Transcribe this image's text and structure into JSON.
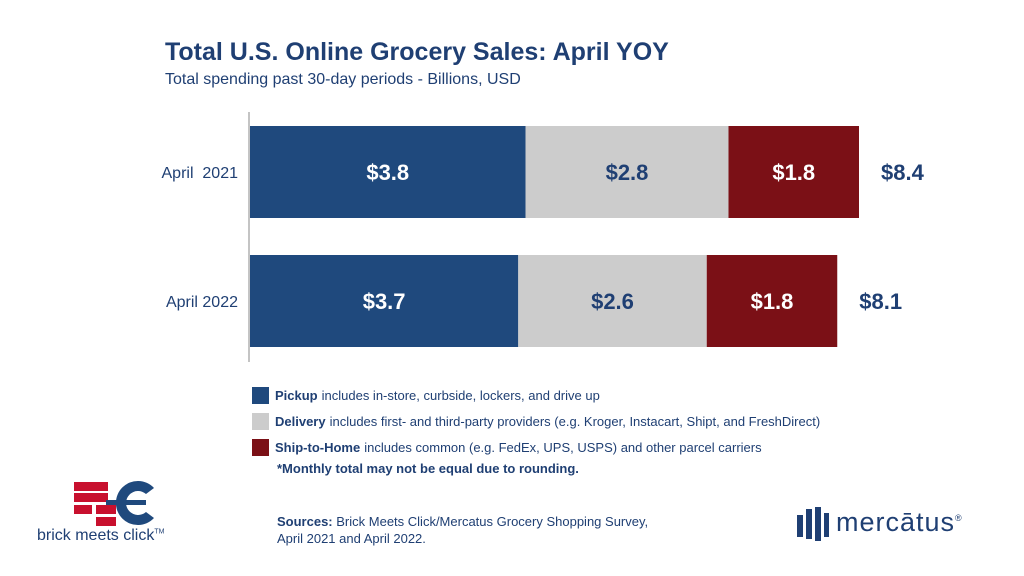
{
  "chart_data": {
    "type": "bar",
    "orientation": "horizontal",
    "stacked": true,
    "title": "Total U.S. Online Grocery Sales: April YOY",
    "subtitle": "Total spending past 30-day periods - Billions, USD",
    "categories": [
      "April  2021",
      "April 2022"
    ],
    "series": [
      {
        "name": "Pickup",
        "values": [
          3.8,
          3.7
        ],
        "labels": [
          "$3.8",
          "$3.7"
        ],
        "color": "#1f497d",
        "label_color": "#ffffff"
      },
      {
        "name": "Delivery",
        "values": [
          2.8,
          2.6
        ],
        "labels": [
          "$2.8",
          "$2.6"
        ],
        "color": "#cccccc",
        "label_color": "#1f3f73"
      },
      {
        "name": "Ship-to-Home",
        "values": [
          1.8,
          1.8
        ],
        "labels": [
          "$1.8",
          "$1.8"
        ],
        "color": "#7b1016",
        "label_color": "#ffffff"
      }
    ],
    "totals": [
      8.4,
      8.1
    ],
    "total_labels": [
      "$8.4",
      "$8.1"
    ],
    "legend_position": "bottom",
    "grid": false
  },
  "legend": [
    {
      "name": "Pickup",
      "desc": "includes in-store, curbside, lockers, and drive up",
      "color": "#1f497d"
    },
    {
      "name": "Delivery",
      "desc": "includes first- and third-party providers (e.g. Kroger, Instacart, Shipt, and FreshDirect)",
      "color": "#cccccc"
    },
    {
      "name": "Ship-to-Home",
      "desc": "includes common (e.g. FedEx, UPS, USPS) and other parcel carriers",
      "color": "#7b1016"
    }
  ],
  "footnote": "*Monthly total may not be equal due to rounding.",
  "sources": {
    "label": "Sources:",
    "line1": "Brick Meets Click/Mercatus Grocery Shopping Survey,",
    "line2": "April 2021 and April 2022."
  },
  "logos": {
    "brick_meets_click": {
      "text": "brick meets click",
      "tm": "TM",
      "icon": "brick-meets-click-logo-icon"
    },
    "mercatus": {
      "text": "mercātus",
      "reg": "®",
      "icon": "mercatus-logo-icon"
    }
  }
}
